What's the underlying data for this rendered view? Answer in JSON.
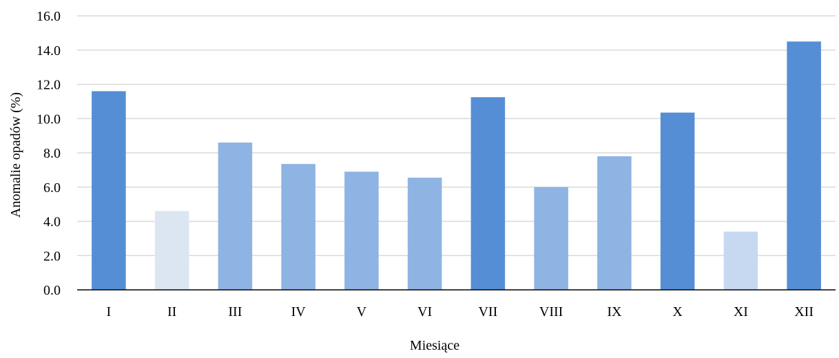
{
  "chart_data": {
    "type": "bar",
    "categories": [
      "I",
      "II",
      "III",
      "IV",
      "V",
      "VI",
      "VII",
      "VIII",
      "IX",
      "X",
      "XI",
      "XII"
    ],
    "values": [
      11.6,
      4.6,
      8.6,
      7.35,
      6.9,
      6.55,
      11.25,
      6.0,
      7.8,
      10.35,
      3.4,
      14.5
    ],
    "bar_colors": [
      "#558ed5",
      "#dce6f2",
      "#8eb4e3",
      "#8eb4e3",
      "#8eb4e3",
      "#8eb4e3",
      "#558ed5",
      "#8eb4e3",
      "#8eb4e3",
      "#558ed5",
      "#c6d9f1",
      "#558ed5"
    ],
    "xlabel": "Miesiące",
    "ylabel": "Anomalie opadów (%)",
    "ylim": [
      0,
      16
    ],
    "yticks": [
      "0.0",
      "2.0",
      "4.0",
      "6.0",
      "8.0",
      "10.0",
      "12.0",
      "14.0",
      "16.0"
    ],
    "grid": true,
    "legend": false
  }
}
